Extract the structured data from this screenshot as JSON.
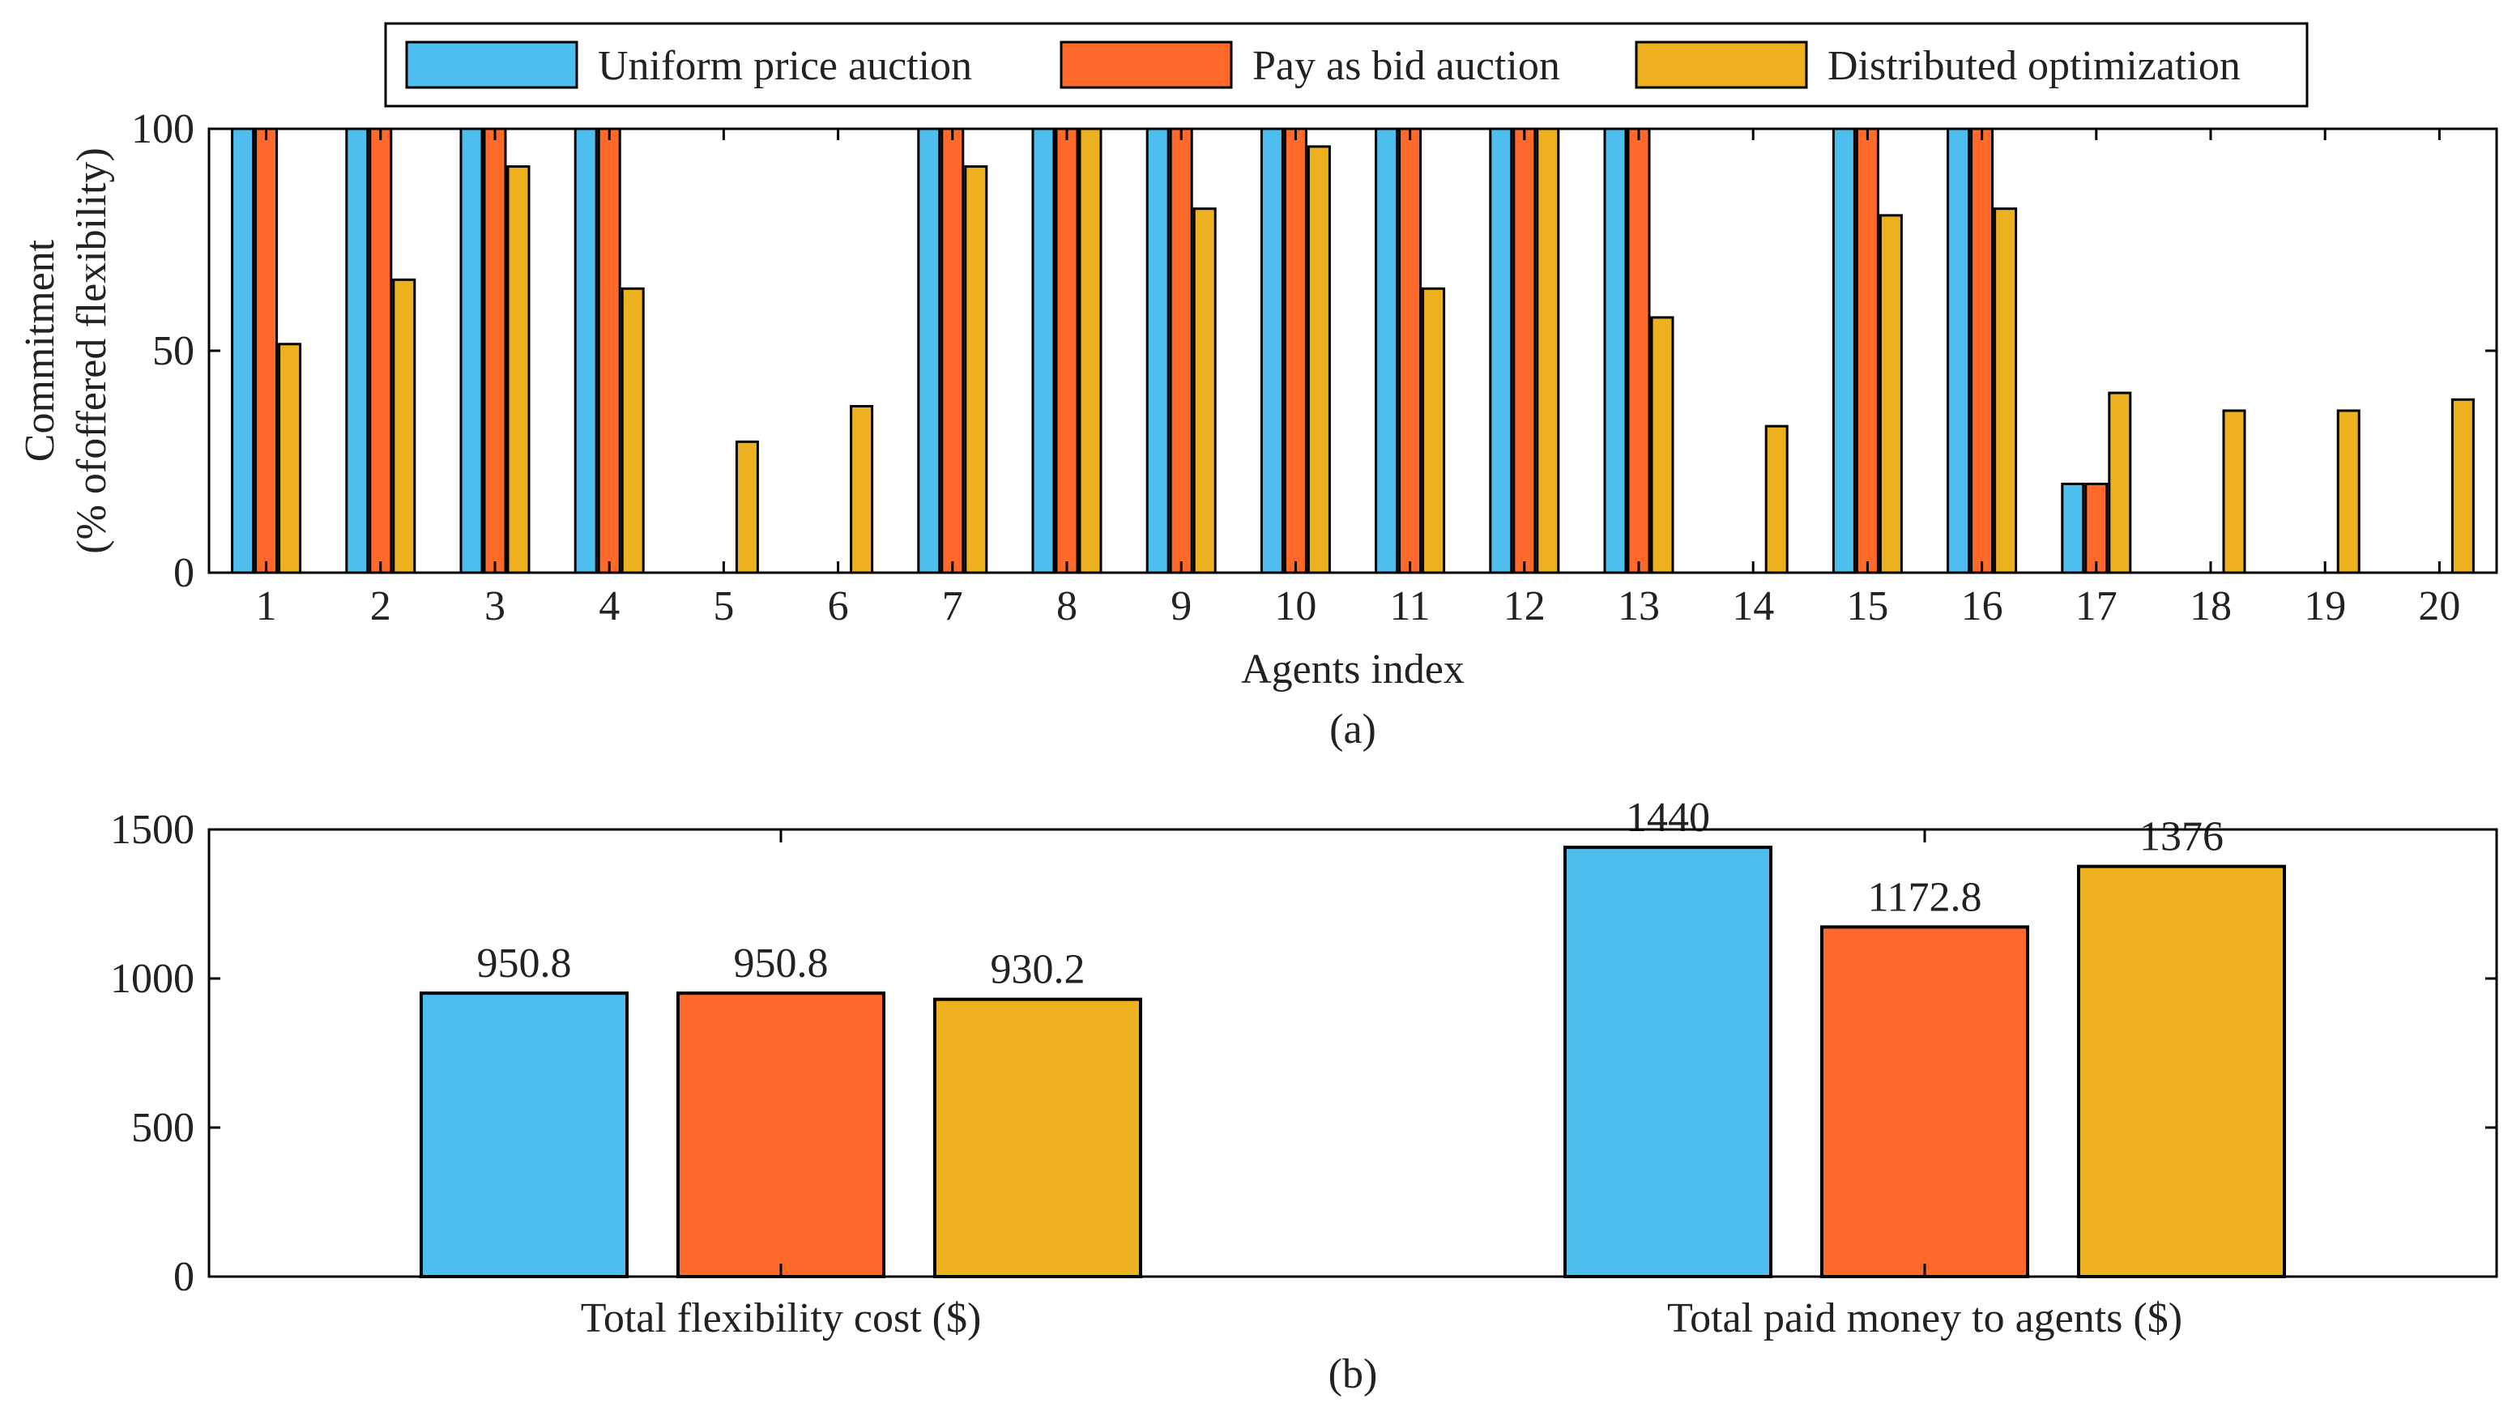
{
  "colors": {
    "uniform": "#4DBEEE",
    "pay_as_bid": "#FF6A2B",
    "distributed": "#EDB120",
    "axis": "#000000",
    "text": "#222222"
  },
  "legend": [
    "Uniform price auction",
    "Pay as bid auction",
    "Distributed optimization"
  ],
  "chart_data": [
    {
      "type": "bar",
      "panel_label": "(a)",
      "xlabel": "Agents index",
      "ylabel_line1": "Commitment",
      "ylabel_line2": "(% ofoffered flexibility)",
      "ylim": [
        0,
        100
      ],
      "yticks": [
        0,
        50,
        100
      ],
      "categories": [
        "1",
        "2",
        "3",
        "4",
        "5",
        "6",
        "7",
        "8",
        "9",
        "10",
        "11",
        "12",
        "13",
        "14",
        "15",
        "16",
        "17",
        "18",
        "19",
        "20"
      ],
      "series": [
        {
          "name": "Uniform price auction",
          "values": [
            100,
            100,
            100,
            100,
            0,
            0,
            100,
            100,
            100,
            100,
            100,
            100,
            100,
            0,
            100,
            100,
            20,
            0,
            0,
            0
          ]
        },
        {
          "name": "Pay as bid auction",
          "values": [
            100,
            100,
            100,
            100,
            0,
            0,
            100,
            100,
            100,
            100,
            100,
            100,
            100,
            0,
            100,
            100,
            20,
            0,
            0,
            0
          ]
        },
        {
          "name": "Distributed optimization",
          "values": [
            51.5,
            66,
            91.5,
            64,
            29.5,
            37.5,
            91.5,
            100,
            82,
            96,
            64,
            100,
            57.5,
            33,
            80.5,
            82,
            40.5,
            36.5,
            36.5,
            39
          ]
        }
      ]
    },
    {
      "type": "bar",
      "panel_label": "(b)",
      "ylim": [
        0,
        1500
      ],
      "yticks": [
        0,
        500,
        1000,
        1500
      ],
      "categories": [
        "Total flexibility cost ($)",
        "Total paid money to agents ($)"
      ],
      "series": [
        {
          "name": "Uniform price auction",
          "values": [
            950.8,
            1440
          ],
          "labels": [
            "950.8",
            "1440"
          ]
        },
        {
          "name": "Pay as bid auction",
          "values": [
            950.8,
            1172.8
          ],
          "labels": [
            "950.8",
            "1172.8"
          ]
        },
        {
          "name": "Distributed optimization",
          "values": [
            930.2,
            1376
          ],
          "labels": [
            "930.2",
            "1376"
          ]
        }
      ]
    }
  ]
}
